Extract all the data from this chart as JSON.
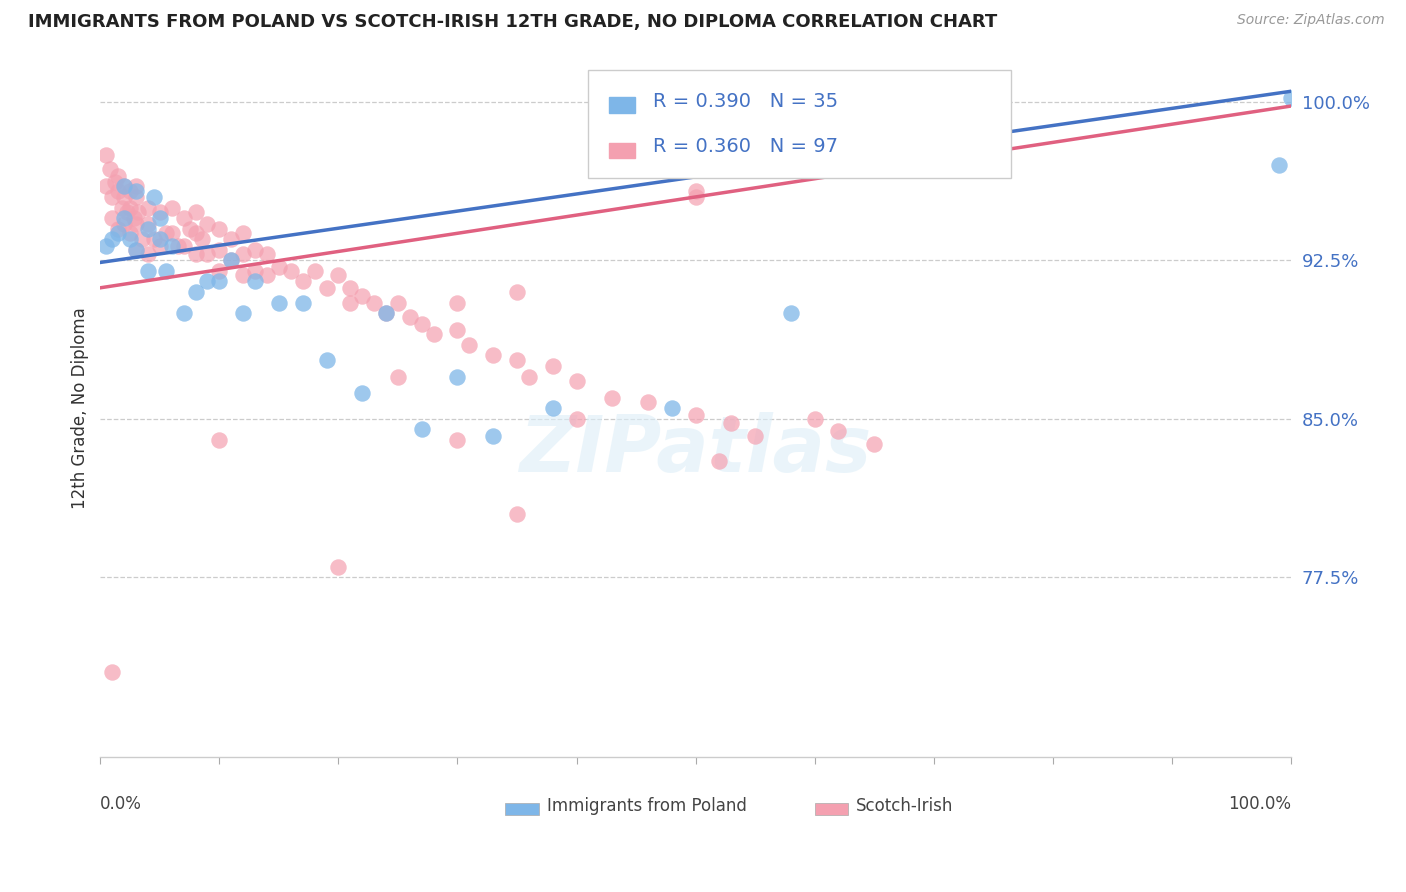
{
  "title": "IMMIGRANTS FROM POLAND VS SCOTCH-IRISH 12TH GRADE, NO DIPLOMA CORRELATION CHART",
  "source": "Source: ZipAtlas.com",
  "ylabel": "12th Grade, No Diploma",
  "poland_R": 0.39,
  "poland_N": 35,
  "scotch_R": 0.36,
  "scotch_N": 97,
  "poland_color": "#7EB6E8",
  "scotch_color": "#F4A0B0",
  "poland_line_color": "#4472C4",
  "scotch_line_color": "#E06080",
  "xmin": 0.0,
  "xmax": 1.0,
  "ymin": 0.69,
  "ymax": 1.02,
  "ytick_vals": [
    0.775,
    0.85,
    0.925,
    1.0
  ],
  "ytick_labels": [
    "77.5%",
    "85.0%",
    "92.5%",
    "100.0%"
  ],
  "poland_line_x0": 0.0,
  "poland_line_y0": 0.924,
  "poland_line_x1": 1.0,
  "poland_line_y1": 1.005,
  "scotch_line_x0": 0.0,
  "scotch_line_y0": 0.912,
  "scotch_line_x1": 1.0,
  "scotch_line_y1": 0.998,
  "poland_x": [
    0.005,
    0.01,
    0.015,
    0.02,
    0.02,
    0.025,
    0.03,
    0.03,
    0.04,
    0.04,
    0.045,
    0.05,
    0.05,
    0.055,
    0.06,
    0.07,
    0.08,
    0.09,
    0.1,
    0.11,
    0.12,
    0.13,
    0.15,
    0.17,
    0.19,
    0.22,
    0.24,
    0.27,
    0.3,
    0.33,
    0.38,
    0.48,
    0.58,
    0.99,
    1.0
  ],
  "poland_y": [
    0.932,
    0.935,
    0.938,
    0.96,
    0.945,
    0.935,
    0.958,
    0.93,
    0.94,
    0.92,
    0.955,
    0.935,
    0.945,
    0.92,
    0.932,
    0.9,
    0.91,
    0.915,
    0.915,
    0.925,
    0.9,
    0.915,
    0.905,
    0.905,
    0.878,
    0.862,
    0.9,
    0.845,
    0.87,
    0.842,
    0.855,
    0.855,
    0.9,
    0.97,
    1.002
  ],
  "scotch_x": [
    0.005,
    0.005,
    0.008,
    0.01,
    0.01,
    0.012,
    0.015,
    0.015,
    0.015,
    0.018,
    0.02,
    0.02,
    0.02,
    0.022,
    0.025,
    0.025,
    0.025,
    0.028,
    0.03,
    0.03,
    0.03,
    0.03,
    0.032,
    0.035,
    0.04,
    0.04,
    0.04,
    0.045,
    0.05,
    0.05,
    0.055,
    0.06,
    0.06,
    0.065,
    0.07,
    0.07,
    0.075,
    0.08,
    0.08,
    0.08,
    0.085,
    0.09,
    0.09,
    0.1,
    0.1,
    0.1,
    0.11,
    0.11,
    0.12,
    0.12,
    0.12,
    0.13,
    0.13,
    0.14,
    0.14,
    0.15,
    0.16,
    0.17,
    0.18,
    0.19,
    0.2,
    0.21,
    0.21,
    0.22,
    0.23,
    0.24,
    0.25,
    0.26,
    0.27,
    0.28,
    0.3,
    0.3,
    0.31,
    0.33,
    0.35,
    0.36,
    0.38,
    0.4,
    0.43,
    0.46,
    0.5,
    0.53,
    0.55,
    0.6,
    0.62,
    0.65,
    0.5,
    0.35,
    0.3,
    0.5,
    0.01,
    0.35,
    0.52,
    0.4,
    0.2,
    0.25,
    0.1
  ],
  "scotch_y": [
    0.975,
    0.96,
    0.968,
    0.955,
    0.945,
    0.962,
    0.965,
    0.958,
    0.94,
    0.95,
    0.96,
    0.955,
    0.942,
    0.948,
    0.958,
    0.95,
    0.938,
    0.945,
    0.96,
    0.955,
    0.942,
    0.93,
    0.948,
    0.935,
    0.95,
    0.942,
    0.928,
    0.935,
    0.948,
    0.932,
    0.938,
    0.95,
    0.938,
    0.932,
    0.945,
    0.932,
    0.94,
    0.948,
    0.938,
    0.928,
    0.935,
    0.942,
    0.928,
    0.94,
    0.93,
    0.92,
    0.935,
    0.925,
    0.938,
    0.928,
    0.918,
    0.93,
    0.92,
    0.928,
    0.918,
    0.922,
    0.92,
    0.915,
    0.92,
    0.912,
    0.918,
    0.912,
    0.905,
    0.908,
    0.905,
    0.9,
    0.905,
    0.898,
    0.895,
    0.89,
    0.905,
    0.892,
    0.885,
    0.88,
    0.878,
    0.87,
    0.875,
    0.868,
    0.86,
    0.858,
    0.852,
    0.848,
    0.842,
    0.85,
    0.844,
    0.838,
    0.958,
    0.91,
    0.84,
    0.955,
    0.73,
    0.805,
    0.83,
    0.85,
    0.78,
    0.87,
    0.84
  ]
}
